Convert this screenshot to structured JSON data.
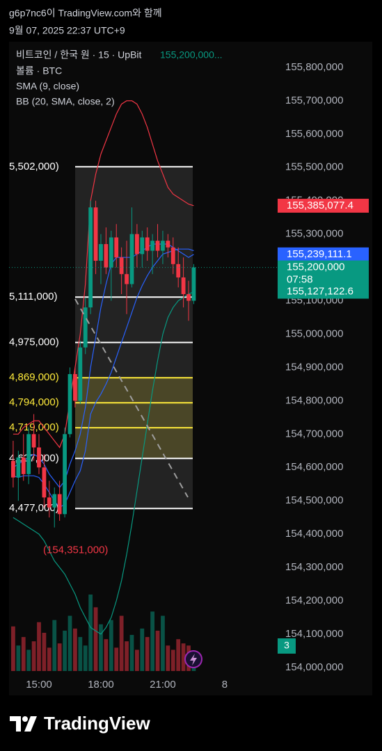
{
  "chart_data": {
    "type": "candlestick",
    "title": "g6p7nc6이 TradingView.com와 함께",
    "subtitle": "9월 07, 2025 22:37 UTC+9",
    "legend": [
      "비트코인 / 한국 원 · 15 · UpBit",
      "볼륨 · BTC"
    ],
    "last_price_text": "155,200,000...",
    "up_color": "#089981",
    "down_color": "#f23645",
    "xlim": [
      13.55,
      26.43
    ],
    "xticks": [
      {
        "value": 15,
        "label": "15:00"
      },
      {
        "value": 18,
        "label": "18:00"
      },
      {
        "value": 21,
        "label": "21:00"
      },
      {
        "value": 24,
        "label": "8"
      }
    ],
    "ylim": [
      153968500,
      155877000
    ],
    "yticks": [
      {
        "value": 154000000,
        "label": "154,000,000"
      },
      {
        "value": 154100000,
        "label": "154,100,000"
      },
      {
        "value": 154200000,
        "label": "154,200,000"
      },
      {
        "value": 154300000,
        "label": "154,300,000"
      },
      {
        "value": 154400000,
        "label": "154,400,000"
      },
      {
        "value": 154500000,
        "label": "154,500,000"
      },
      {
        "value": 154600000,
        "label": "154,600,000"
      },
      {
        "value": 154700000,
        "label": "154,700,000"
      },
      {
        "value": 154800000,
        "label": "154,800,000"
      },
      {
        "value": 154900000,
        "label": "154,900,000"
      },
      {
        "value": 155000000,
        "label": "155,000,000"
      },
      {
        "value": 155100000,
        "label": "155,100,000"
      },
      {
        "value": 155200000,
        "label": "155,200,000"
      },
      {
        "value": 155300000,
        "label": "155,300,000"
      },
      {
        "value": 155400000,
        "label": "155,400,000"
      },
      {
        "value": 155500000,
        "label": "155,500,000"
      },
      {
        "value": 155600000,
        "label": "155,600,000"
      },
      {
        "value": 155700000,
        "label": "155,700,000"
      },
      {
        "value": 155800000,
        "label": "155,800,000"
      }
    ],
    "x": [
      13.75,
      14,
      14.25,
      14.5,
      14.75,
      15,
      15.25,
      15.5,
      15.75,
      16,
      16.25,
      16.5,
      16.75,
      17,
      17.25,
      17.5,
      17.75,
      18,
      18.25,
      18.5,
      18.75,
      19,
      19.25,
      19.5,
      19.75,
      20,
      20.25,
      20.5,
      20.75,
      21,
      21.25,
      21.5,
      21.75,
      22,
      22.25,
      22.5
    ],
    "open": [
      154620000,
      154570000,
      154630000,
      154580000,
      154700000,
      154660000,
      154600000,
      154510000,
      154480000,
      154520000,
      154460000,
      154700000,
      154880000,
      154800000,
      154960000,
      155080000,
      155380000,
      155220000,
      155270000,
      155200000,
      155290000,
      155230000,
      155180000,
      155150000,
      155300000,
      155240000,
      155290000,
      155250000,
      155280000,
      155250000,
      155280000,
      155260000,
      155210000,
      155170000,
      155120000,
      155100000
    ],
    "high": [
      154680000,
      154650000,
      154700000,
      154720000,
      154760000,
      154700000,
      154640000,
      154560000,
      154540000,
      154560000,
      154720000,
      154900000,
      154900000,
      154980000,
      155110000,
      155400000,
      155400000,
      155300000,
      155320000,
      155310000,
      155330000,
      155260000,
      155280000,
      155380000,
      155330000,
      155310000,
      155320000,
      155300000,
      155330000,
      155310000,
      155300000,
      155290000,
      155260000,
      155230000,
      155160000,
      155210000
    ],
    "low": [
      154540000,
      154500000,
      154560000,
      154550000,
      154620000,
      154580000,
      154480000,
      154450000,
      154420000,
      154440000,
      154450000,
      154690000,
      154780000,
      154790000,
      154940000,
      155060000,
      155180000,
      155150000,
      155180000,
      155100000,
      155200000,
      155120000,
      155060000,
      155140000,
      155200000,
      155200000,
      155220000,
      155180000,
      155230000,
      155210000,
      155230000,
      155180000,
      155140000,
      155080000,
      155040000,
      155090000
    ],
    "close": [
      154570000,
      154630000,
      154580000,
      154700000,
      154660000,
      154600000,
      154510000,
      154480000,
      154520000,
      154460000,
      154700000,
      154880000,
      154800000,
      154960000,
      155080000,
      155380000,
      155220000,
      155270000,
      155200000,
      155290000,
      155230000,
      155180000,
      155150000,
      155300000,
      155240000,
      155290000,
      155250000,
      155280000,
      155250000,
      155280000,
      155260000,
      155210000,
      155170000,
      155120000,
      155100000,
      155200000
    ],
    "volume": [
      2.1,
      1.2,
      1.6,
      1.0,
      1.4,
      2.3,
      1.8,
      1.1,
      2.4,
      1.3,
      1.9,
      2.6,
      2.0,
      1.6,
      1.2,
      3.6,
      3.0,
      2.2,
      1.5,
      2.4,
      1.1,
      2.6,
      1.4,
      1.7,
      1.0,
      2.0,
      1.6,
      2.8,
      1.9,
      2.6,
      1.2,
      1.0,
      1.5,
      1.3,
      1.2,
      0.9
    ],
    "sma": {
      "name": "SMA (9, close)",
      "color": "#2962ff",
      "values": [
        154600000,
        154610000,
        154620000,
        154630000,
        154640000,
        154630000,
        154610000,
        154580000,
        154560000,
        154540000,
        154560000,
        154610000,
        154650000,
        154700000,
        154780000,
        154900000,
        154990000,
        155080000,
        155150000,
        155210000,
        155230000,
        155230000,
        155230000,
        155230000,
        155240000,
        155250000,
        155260000,
        155270000,
        155270000,
        155270000,
        155270000,
        155260000,
        155250000,
        155240000,
        155230000,
        155239111.1
      ]
    },
    "bb": {
      "name": "BB (20, SMA, close, 2)",
      "upper_color": "#f23645",
      "basis_color": "#2962ff",
      "lower_color": "#089981",
      "upper": [
        154700000,
        154700000,
        154720000,
        154730000,
        154740000,
        154740000,
        154720000,
        154700000,
        154680000,
        154660000,
        154700000,
        154800000,
        154900000,
        155000000,
        155150000,
        155400000,
        155480000,
        155540000,
        155580000,
        155620000,
        155660000,
        155690000,
        155700000,
        155700000,
        155690000,
        155660000,
        155620000,
        155570000,
        155520000,
        155480000,
        155440000,
        155420000,
        155410000,
        155400000,
        155390000,
        155385077.4
      ],
      "basis": [
        154575000,
        154570000,
        154575000,
        154575000,
        154575000,
        154570000,
        154550000,
        154525000,
        154500000,
        154480000,
        154490000,
        154525000,
        154560000,
        154590000,
        154650000,
        154760000,
        154795000,
        154820000,
        154850000,
        154885000,
        154930000,
        154975000,
        155020000,
        155065000,
        155110000,
        155145000,
        155175000,
        155200000,
        155220000,
        155240000,
        155245000,
        155250000,
        155255000,
        155255000,
        155255000,
        155250189.9
      ],
      "lower": [
        154450000,
        154440000,
        154430000,
        154420000,
        154410000,
        154400000,
        154380000,
        154350000,
        154320000,
        154300000,
        154280000,
        154250000,
        154220000,
        154180000,
        154150000,
        154120000,
        154110000,
        154100000,
        154120000,
        154150000,
        154200000,
        154260000,
        154340000,
        154430000,
        154530000,
        154630000,
        154730000,
        154830000,
        154920000,
        155000000,
        155050000,
        155080000,
        155100000,
        155110000,
        155120000,
        155127122.6
      ]
    },
    "fib_levels": [
      {
        "value": 155502000,
        "label": "5,502,000)",
        "color": "#ffffff"
      },
      {
        "value": 155111000,
        "label": "5,111,000)",
        "color": "#ffffff"
      },
      {
        "value": 154975000,
        "label": "4,975,000)",
        "color": "#ffffff"
      },
      {
        "value": 154869000,
        "label": "4,869,000)",
        "color": "#ffeb3b"
      },
      {
        "value": 154794000,
        "label": "4,794,000)",
        "color": "#ffeb3b"
      },
      {
        "value": 154719000,
        "label": "4,719,000)",
        "color": "#ffeb3b"
      },
      {
        "value": 154627000,
        "label": "4,627,000)",
        "color": "#ffffff"
      },
      {
        "value": 154477000,
        "label": "4,477,000)",
        "color": "#ffffff"
      }
    ],
    "price_labels": [
      {
        "value": 155385077.4,
        "label": "155,385,077.4",
        "color": "#f23645"
      },
      {
        "value": 155239111.1,
        "label": "155,239,111.1",
        "color": "#2962ff"
      },
      {
        "value": 155200000,
        "label": "155,200,000",
        "color": "#089981"
      },
      {
        "value": 155127122.6,
        "label": "155,127,122.6",
        "color": "#089981"
      }
    ],
    "countdown": "07:58",
    "annotation": {
      "value": 154351000,
      "label": "(154,351,000)"
    },
    "badge": "3"
  }
}
